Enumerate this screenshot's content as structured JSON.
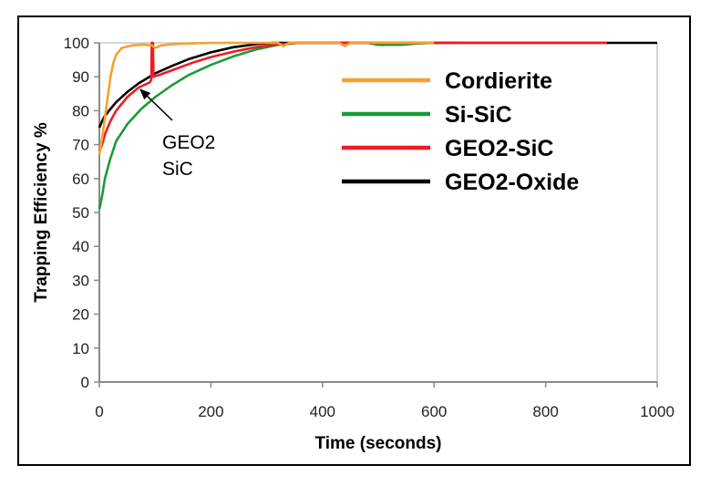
{
  "chart_data": {
    "type": "line",
    "title": "",
    "xlabel": "Time (seconds)",
    "ylabel": "Trapping Efficiency %",
    "xlim": [
      0,
      1000
    ],
    "ylim": [
      0,
      100
    ],
    "x_ticks": [
      0,
      200,
      400,
      600,
      800,
      1000
    ],
    "y_ticks": [
      0,
      10,
      20,
      30,
      40,
      50,
      60,
      70,
      80,
      90,
      100
    ],
    "grid": false,
    "legend_position": "top-right",
    "series": [
      {
        "name": "Cordierite",
        "color": "#f7a030",
        "points": [
          [
            0,
            67
          ],
          [
            5,
            72
          ],
          [
            10,
            78
          ],
          [
            15,
            84
          ],
          [
            20,
            90
          ],
          [
            25,
            94
          ],
          [
            30,
            96.5
          ],
          [
            40,
            98.5
          ],
          [
            60,
            99.3
          ],
          [
            80,
            99.5
          ],
          [
            95,
            99.2
          ],
          [
            100,
            98.5
          ],
          [
            110,
            99.2
          ],
          [
            130,
            99.6
          ],
          [
            160,
            99.8
          ],
          [
            200,
            100
          ],
          [
            320,
            100
          ],
          [
            330,
            99
          ],
          [
            340,
            100
          ],
          [
            430,
            100
          ],
          [
            440,
            99
          ],
          [
            450,
            100
          ],
          [
            600,
            100
          ]
        ]
      },
      {
        "name": "Si-SiC",
        "color": "#1a9a3a",
        "points": [
          [
            0,
            51
          ],
          [
            5,
            55
          ],
          [
            10,
            60
          ],
          [
            20,
            66
          ],
          [
            30,
            71
          ],
          [
            50,
            76
          ],
          [
            75,
            80.5
          ],
          [
            100,
            84
          ],
          [
            130,
            87.5
          ],
          [
            160,
            90.5
          ],
          [
            200,
            93.5
          ],
          [
            240,
            96
          ],
          [
            280,
            98
          ],
          [
            320,
            99.4
          ],
          [
            360,
            100
          ],
          [
            480,
            100
          ],
          [
            500,
            99.4
          ],
          [
            540,
            99.4
          ],
          [
            570,
            99.8
          ],
          [
            600,
            100
          ],
          [
            650,
            100
          ]
        ]
      },
      {
        "name": "GEO2-SiC",
        "color": "#ee1c24",
        "points": [
          [
            0,
            68
          ],
          [
            5,
            70
          ],
          [
            10,
            73
          ],
          [
            20,
            77
          ],
          [
            30,
            80
          ],
          [
            50,
            84
          ],
          [
            70,
            86.8
          ],
          [
            90,
            88.3
          ],
          [
            93,
            89
          ],
          [
            94,
            100
          ],
          [
            96,
            100
          ],
          [
            97,
            90
          ],
          [
            110,
            90.7
          ],
          [
            140,
            92.5
          ],
          [
            170,
            94.3
          ],
          [
            200,
            95.8
          ],
          [
            240,
            97.4
          ],
          [
            280,
            98.7
          ],
          [
            320,
            99.6
          ],
          [
            360,
            100
          ],
          [
            910,
            100
          ]
        ]
      },
      {
        "name": "GEO2-Oxide",
        "color": "#000000",
        "points": [
          [
            0,
            75
          ],
          [
            5,
            77
          ],
          [
            10,
            78.5
          ],
          [
            20,
            80.5
          ],
          [
            30,
            82.5
          ],
          [
            50,
            85.5
          ],
          [
            70,
            88
          ],
          [
            100,
            91
          ],
          [
            130,
            93.2
          ],
          [
            160,
            95.2
          ],
          [
            200,
            97.2
          ],
          [
            240,
            98.7
          ],
          [
            280,
            99.6
          ],
          [
            310,
            100
          ],
          [
            1000,
            100
          ]
        ]
      }
    ],
    "annotations": [
      {
        "text_lines": [
          "GEO2",
          "SiC"
        ],
        "points_to_series": "GEO2-SiC",
        "points_to": [
          72,
          86.5
        ]
      }
    ]
  }
}
